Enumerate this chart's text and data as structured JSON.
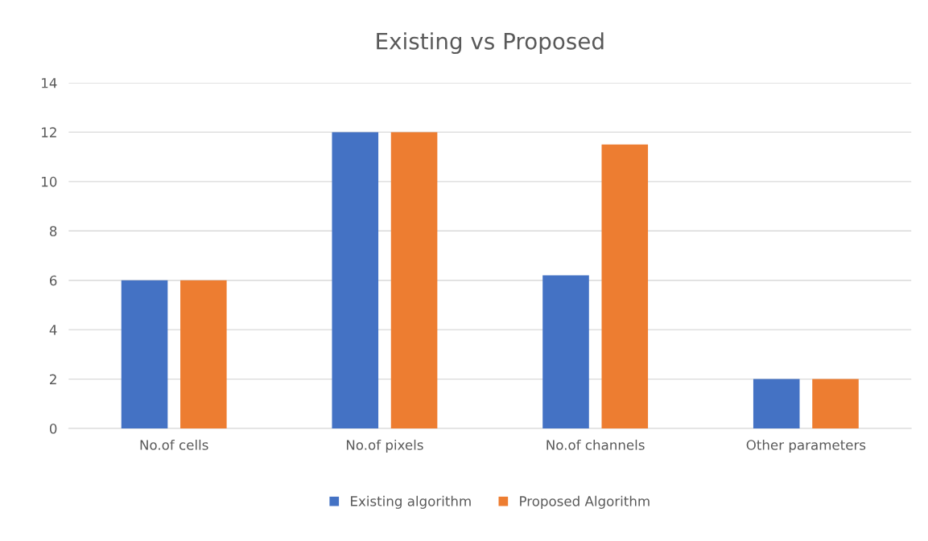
{
  "chart_data": {
    "type": "bar",
    "title": "Existing vs Proposed",
    "categories": [
      "No.of cells",
      "No.of pixels",
      "No.of channels",
      "Other parameters"
    ],
    "series": [
      {
        "name": "Existing algorithm",
        "color": "#4472c4",
        "values": [
          6,
          12,
          6.2,
          2
        ]
      },
      {
        "name": "Proposed Algorithm",
        "color": "#ed7d31",
        "values": [
          6,
          12,
          11.5,
          2
        ]
      }
    ],
    "ylim": [
      0,
      14
    ],
    "yticks": [
      0,
      2,
      4,
      6,
      8,
      10,
      12,
      14
    ],
    "grid": "y",
    "legend": "bottom"
  }
}
